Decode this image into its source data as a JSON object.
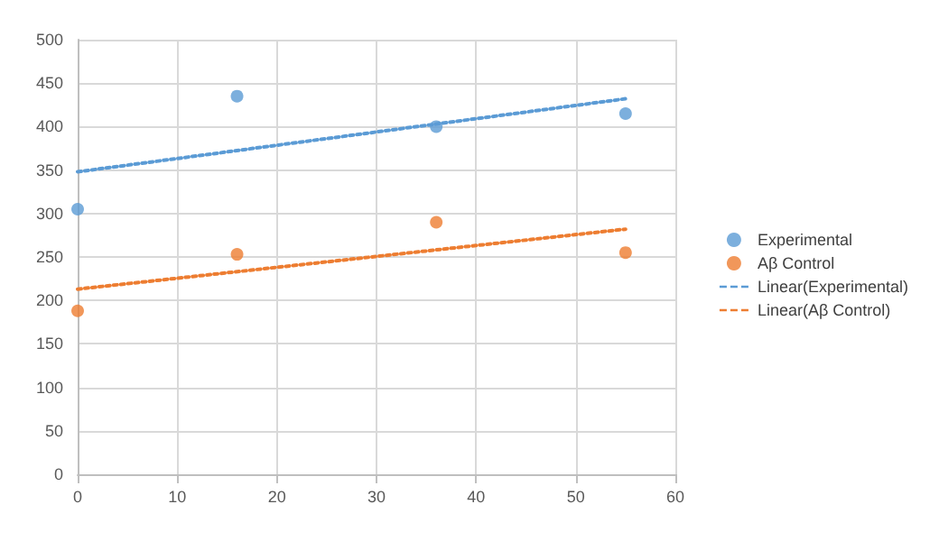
{
  "chart_data": {
    "type": "scatter",
    "xlim": [
      0,
      60
    ],
    "xticks": [
      0,
      10,
      20,
      30,
      40,
      50,
      60
    ],
    "ylim": [
      0,
      500
    ],
    "yticks": [
      0,
      50,
      100,
      150,
      200,
      250,
      300,
      350,
      400,
      450,
      500
    ],
    "grid": true,
    "legend": "right",
    "marker": "circle",
    "series": [
      {
        "name": "Experimental",
        "color": "#5b9bd5",
        "x": [
          0,
          16,
          36,
          55
        ],
        "values": [
          305,
          435,
          400,
          415
        ]
      },
      {
        "name": "Aβ Control",
        "color": "#ed7d31",
        "x": [
          0,
          16,
          36,
          55
        ],
        "values": [
          188,
          253,
          290,
          255
        ]
      },
      {
        "name": "Linear(Experimental)",
        "type": "line",
        "marker": "none",
        "line_style": "dotted",
        "color": "#5b9bd5",
        "x": [
          0,
          55
        ],
        "values": [
          348,
          432
        ]
      },
      {
        "name": "Linear(Aβ Control)",
        "type": "line",
        "marker": "none",
        "line_style": "dotted",
        "color": "#ed7d31",
        "x": [
          0,
          55
        ],
        "values": [
          213,
          282
        ]
      }
    ]
  }
}
